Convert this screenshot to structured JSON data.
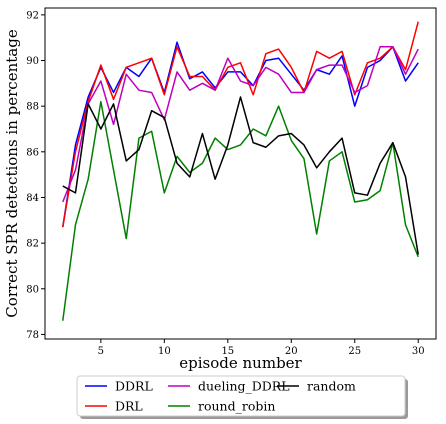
{
  "chart_data": {
    "type": "line",
    "xlabel": "episode number",
    "ylabel": "Correct SPR detections in percentage",
    "xlim": [
      0.6,
      31.4
    ],
    "ylim": [
      77.8,
      92.3
    ],
    "xticks": [
      5,
      10,
      15,
      20,
      25,
      30
    ],
    "yticks": [
      78,
      80,
      82,
      84,
      86,
      88,
      90,
      92
    ],
    "grid": false,
    "legend_position": "below",
    "x": [
      2,
      3,
      4,
      5,
      6,
      7,
      8,
      9,
      10,
      11,
      12,
      13,
      14,
      15,
      16,
      17,
      18,
      19,
      20,
      21,
      22,
      23,
      24,
      25,
      26,
      27,
      28,
      29,
      30
    ],
    "series": [
      {
        "name": "DDRL",
        "color": "#0000ff",
        "values": [
          82.7,
          86.3,
          88.4,
          89.7,
          88.6,
          89.7,
          89.3,
          90.1,
          88.6,
          90.8,
          89.2,
          89.5,
          88.8,
          89.5,
          89.5,
          88.9,
          90.0,
          90.1,
          89.4,
          88.7,
          89.6,
          89.4,
          90.2,
          88.0,
          89.7,
          90.0,
          90.6,
          89.1,
          89.9
        ]
      },
      {
        "name": "DRL",
        "color": "#ff0000",
        "values": [
          82.7,
          86.0,
          88.2,
          89.8,
          88.3,
          89.7,
          89.9,
          90.1,
          88.5,
          90.6,
          89.3,
          89.3,
          88.7,
          89.7,
          89.9,
          88.5,
          90.3,
          90.5,
          89.7,
          88.6,
          90.4,
          90.1,
          90.4,
          88.5,
          89.9,
          90.1,
          90.6,
          89.6,
          91.7
        ]
      },
      {
        "name": "dueling_DDRL",
        "color": "#bf00bf",
        "values": [
          83.8,
          85.2,
          88.1,
          89.1,
          87.2,
          89.4,
          88.7,
          88.6,
          87.4,
          89.5,
          88.7,
          89.0,
          88.7,
          90.1,
          89.1,
          88.9,
          89.7,
          89.4,
          88.6,
          88.6,
          89.6,
          89.8,
          89.8,
          88.6,
          88.9,
          90.6,
          90.6,
          89.4,
          90.5
        ]
      },
      {
        "name": "round_robin",
        "color": "#008000",
        "values": [
          78.6,
          82.8,
          84.8,
          88.2,
          85.2,
          82.2,
          86.6,
          86.9,
          84.2,
          85.8,
          85.1,
          85.5,
          86.6,
          86.1,
          86.3,
          87.0,
          86.7,
          88.0,
          86.5,
          85.7,
          82.4,
          85.6,
          86.0,
          83.8,
          83.9,
          84.3,
          86.4,
          82.8,
          81.4
        ]
      },
      {
        "name": "random",
        "color": "#000000",
        "values": [
          84.5,
          84.2,
          88.1,
          87.0,
          88.1,
          85.6,
          86.1,
          87.8,
          87.5,
          85.5,
          84.9,
          86.8,
          84.8,
          86.3,
          88.4,
          86.4,
          86.2,
          86.7,
          86.8,
          86.3,
          85.3,
          86.0,
          86.6,
          84.2,
          84.1,
          85.5,
          86.4,
          84.9,
          81.5
        ]
      }
    ]
  }
}
